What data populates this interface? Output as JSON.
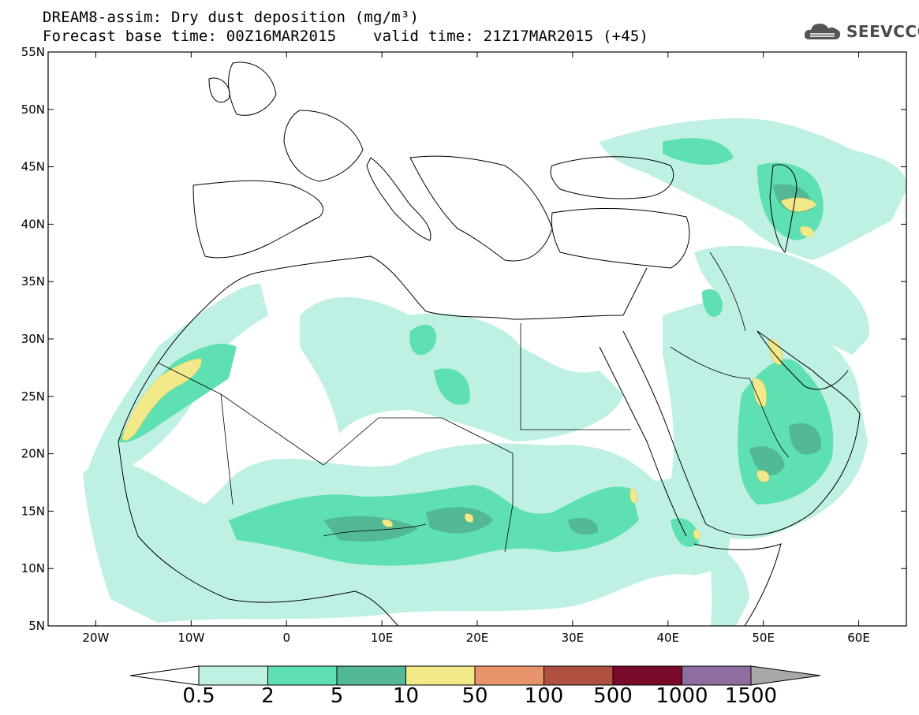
{
  "header": {
    "title": "DREAM8-assim: Dry dust deposition (mg/m³)",
    "subtitle": "Forecast base time: 00Z16MAR2015    valid time: 21Z17MAR2015 (+45)"
  },
  "logo": {
    "text": "SEEVCCC",
    "icon": "cloud-icon"
  },
  "map": {
    "lat_labels": [
      "55N",
      "50N",
      "45N",
      "40N",
      "35N",
      "30N",
      "25N",
      "20N",
      "15N",
      "10N",
      "5N"
    ],
    "lon_labels": [
      "20W",
      "10W",
      "0",
      "10E",
      "20E",
      "30E",
      "40E",
      "50E",
      "60E"
    ],
    "extent": {
      "lon": [
        -25,
        65
      ],
      "lat": [
        5,
        55
      ]
    }
  },
  "colorbar": {
    "labels": [
      "0.5",
      "2",
      "5",
      "10",
      "50",
      "100",
      "500",
      "1000",
      "1500"
    ],
    "colors": [
      "#bff0e4",
      "#5ee0b3",
      "#52b895",
      "#f2e98a",
      "#e8936a",
      "#b05040",
      "#7a0a2a",
      "#8e6ea0",
      "#a8a8a8"
    ]
  }
}
